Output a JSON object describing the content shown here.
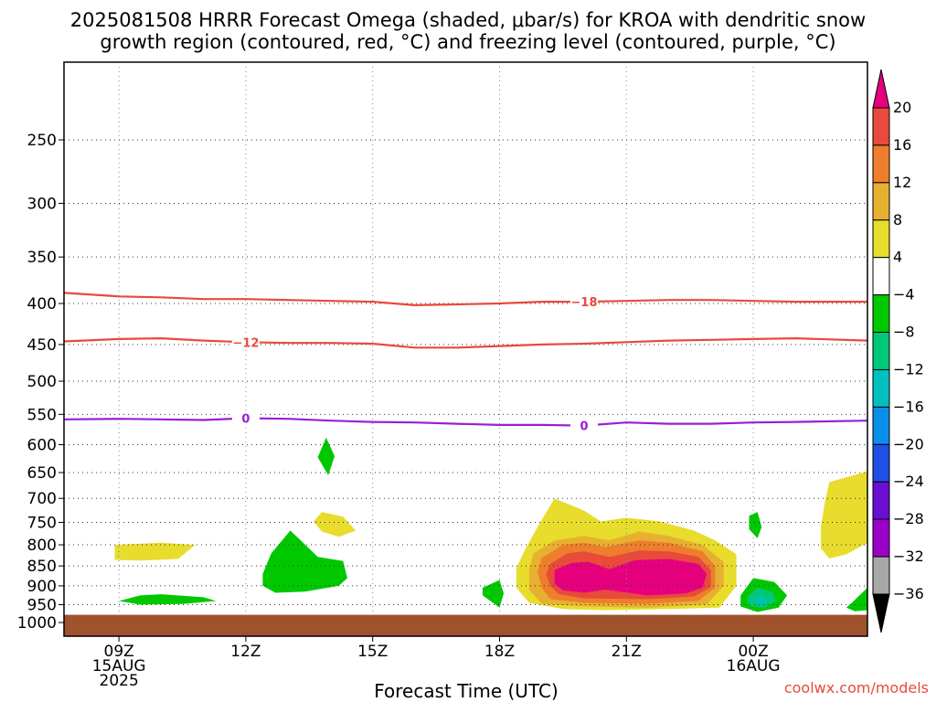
{
  "chart_data": {
    "type": "heatmap",
    "title_lines": [
      "2025081508 HRRR Forecast Omega (shaded, μbar/s) for KROA with dendritic snow",
      "growth region (contoured, red, °C) and freezing level (contoured, purple, °C)"
    ],
    "xlabel": "Forecast Time (UTC)",
    "credit": "coolwx.com/models",
    "x_range_hours": [
      7.7,
      26.7
    ],
    "x_ticks": [
      {
        "hour": 9,
        "lines": [
          "09Z",
          "15AUG",
          "2025"
        ]
      },
      {
        "hour": 12,
        "lines": [
          "12Z"
        ]
      },
      {
        "hour": 15,
        "lines": [
          "15Z"
        ]
      },
      {
        "hour": 18,
        "lines": [
          "18Z"
        ]
      },
      {
        "hour": 21,
        "lines": [
          "21Z"
        ]
      },
      {
        "hour": 24,
        "lines": [
          "00Z",
          "16AUG"
        ]
      }
    ],
    "y_ticks_hpa": [
      250,
      300,
      350,
      400,
      450,
      500,
      550,
      600,
      650,
      700,
      750,
      800,
      850,
      900,
      950,
      1000
    ],
    "y_scale": "log-pressure",
    "y_range_hpa": [
      200,
      1040
    ],
    "ground_level_hpa": 978,
    "grid": true,
    "colorbar": {
      "labels": [
        "20",
        "16",
        "12",
        "8",
        "4",
        "−4",
        "−8",
        "−12",
        "−16",
        "−20",
        "−24",
        "−28",
        "−32",
        "−36"
      ],
      "colors": [
        "#e6007e",
        "#e84a3c",
        "#ed7f2c",
        "#e8b030",
        "#e8dc2c",
        "#ffffff",
        "#00c800",
        "#00c87a",
        "#00c0c0",
        "#0a8fe8",
        "#1f4fe6",
        "#6a0fd2",
        "#9a00c8",
        "#a8a8a8",
        "#000000"
      ],
      "arrow_top_color": "#e6007e",
      "arrow_bottom_color": "#000000"
    },
    "contours": [
      {
        "label": "−18",
        "color": "#e84a3c",
        "points": [
          [
            7.7,
            388
          ],
          [
            9,
            392
          ],
          [
            10,
            393
          ],
          [
            11,
            395
          ],
          [
            12,
            395
          ],
          [
            13,
            396
          ],
          [
            14,
            397
          ],
          [
            15,
            398
          ],
          [
            16,
            402
          ],
          [
            17,
            401
          ],
          [
            18,
            400
          ],
          [
            19,
            398
          ],
          [
            20,
            398
          ],
          [
            21,
            397
          ],
          [
            22,
            396
          ],
          [
            23,
            396
          ],
          [
            24,
            397
          ],
          [
            25,
            398
          ],
          [
            26.7,
            398
          ]
        ]
      },
      {
        "label": "−12",
        "color": "#e84a3c",
        "points": [
          [
            7.7,
            446
          ],
          [
            9,
            443
          ],
          [
            10,
            442
          ],
          [
            11,
            445
          ],
          [
            12,
            447
          ],
          [
            13,
            448
          ],
          [
            14,
            448
          ],
          [
            15,
            449
          ],
          [
            16,
            454
          ],
          [
            17,
            454
          ],
          [
            18,
            452
          ],
          [
            19,
            450
          ],
          [
            20,
            449
          ],
          [
            21,
            447
          ],
          [
            22,
            445
          ],
          [
            23,
            444
          ],
          [
            24,
            443
          ],
          [
            25,
            442
          ],
          [
            26.7,
            445
          ]
        ]
      },
      {
        "label": "0",
        "color": "#9a1fd0",
        "points": [
          [
            7.7,
            558
          ],
          [
            9,
            557
          ],
          [
            10,
            558
          ],
          [
            11,
            559
          ],
          [
            12,
            556
          ],
          [
            13,
            557
          ],
          [
            14,
            560
          ],
          [
            15,
            562
          ],
          [
            16,
            563
          ],
          [
            17,
            565
          ],
          [
            18,
            567
          ],
          [
            19,
            567
          ],
          [
            20,
            568
          ],
          [
            21,
            563
          ],
          [
            22,
            565
          ],
          [
            23,
            565
          ],
          [
            24,
            563
          ],
          [
            25,
            562
          ],
          [
            26.7,
            560
          ]
        ]
      }
    ],
    "omega_regions": [
      {
        "value_range": "4 to 8",
        "color": "#e8dc2c",
        "points": [
          [
            8.9,
            800
          ],
          [
            10,
            795
          ],
          [
            10.8,
            800
          ],
          [
            10.4,
            833
          ],
          [
            9.5,
            837
          ],
          [
            8.9,
            835
          ]
        ]
      },
      {
        "value_range": "4 to 8",
        "color": "#e8dc2c",
        "points": [
          [
            13.8,
            728
          ],
          [
            14.3,
            738
          ],
          [
            14.6,
            768
          ],
          [
            14.2,
            782
          ],
          [
            13.8,
            770
          ],
          [
            13.6,
            748
          ]
        ]
      },
      {
        "value_range": "4 to 8",
        "color": "#e8dc2c",
        "points": [
          [
            18.6,
            812
          ],
          [
            18.9,
            760
          ],
          [
            19.3,
            700
          ],
          [
            20,
            725
          ],
          [
            20.4,
            748
          ],
          [
            21,
            740
          ],
          [
            21.8,
            748
          ],
          [
            22.6,
            768
          ],
          [
            23.1,
            790
          ],
          [
            23.6,
            822
          ],
          [
            23.6,
            900
          ],
          [
            23.2,
            958
          ],
          [
            22,
            962
          ],
          [
            20.5,
            965
          ],
          [
            19.5,
            962
          ],
          [
            18.7,
            945
          ],
          [
            18.4,
            905
          ],
          [
            18.4,
            855
          ]
        ]
      },
      {
        "value_range": "4 to 8",
        "color": "#e8dc2c",
        "points": [
          [
            25.8,
            668
          ],
          [
            26.7,
            648
          ],
          [
            26.7,
            795
          ],
          [
            26.2,
            822
          ],
          [
            25.8,
            832
          ],
          [
            25.6,
            808
          ],
          [
            25.6,
            760
          ],
          [
            25.7,
            705
          ]
        ]
      },
      {
        "value_range": "8 to 12",
        "color": "#e8b030",
        "points": [
          [
            18.8,
            820
          ],
          [
            19.3,
            790
          ],
          [
            20,
            780
          ],
          [
            20.6,
            790
          ],
          [
            21.3,
            770
          ],
          [
            22,
            780
          ],
          [
            22.8,
            800
          ],
          [
            23.3,
            840
          ],
          [
            23.3,
            900
          ],
          [
            22.9,
            950
          ],
          [
            21.5,
            958
          ],
          [
            20,
            955
          ],
          [
            19,
            948
          ],
          [
            18.7,
            910
          ],
          [
            18.7,
            860
          ]
        ]
      },
      {
        "value_range": "12 to 16",
        "color": "#ed7f2c",
        "points": [
          [
            19,
            830
          ],
          [
            19.5,
            800
          ],
          [
            20,
            795
          ],
          [
            20.5,
            805
          ],
          [
            21.3,
            790
          ],
          [
            22,
            795
          ],
          [
            22.8,
            815
          ],
          [
            23.1,
            850
          ],
          [
            23.1,
            905
          ],
          [
            22.7,
            940
          ],
          [
            21.5,
            948
          ],
          [
            20,
            945
          ],
          [
            19.2,
            935
          ],
          [
            19,
            905
          ],
          [
            18.9,
            865
          ]
        ]
      },
      {
        "value_range": "16 to 20",
        "color": "#e84a3c",
        "points": [
          [
            19.2,
            845
          ],
          [
            19.6,
            820
          ],
          [
            20,
            815
          ],
          [
            20.6,
            828
          ],
          [
            21.3,
            813
          ],
          [
            22,
            815
          ],
          [
            22.7,
            828
          ],
          [
            23,
            860
          ],
          [
            23,
            903
          ],
          [
            22.6,
            928
          ],
          [
            21.5,
            935
          ],
          [
            20,
            933
          ],
          [
            19.4,
            922
          ],
          [
            19.2,
            900
          ],
          [
            19.1,
            870
          ]
        ]
      },
      {
        "value_range": "> 20",
        "color": "#e6007e",
        "points": [
          [
            19.3,
            860
          ],
          [
            19.7,
            843
          ],
          [
            20.1,
            840
          ],
          [
            20.6,
            858
          ],
          [
            21.2,
            836
          ],
          [
            22,
            833
          ],
          [
            22.7,
            845
          ],
          [
            22.9,
            870
          ],
          [
            22.8,
            905
          ],
          [
            22.4,
            920
          ],
          [
            21.5,
            925
          ],
          [
            20.5,
            910
          ],
          [
            20,
            918
          ],
          [
            19.5,
            912
          ],
          [
            19.3,
            895
          ]
        ]
      },
      {
        "value_range": "-4 to -8",
        "color": "#00c800",
        "points": [
          [
            13.9,
            588
          ],
          [
            14.1,
            620
          ],
          [
            13.95,
            655
          ],
          [
            13.7,
            622
          ]
        ]
      },
      {
        "value_range": "-4 to -8",
        "color": "#00c800",
        "points": [
          [
            13.05,
            768
          ],
          [
            13.3,
            790
          ],
          [
            13.7,
            828
          ],
          [
            14.3,
            838
          ],
          [
            14.4,
            880
          ],
          [
            14.2,
            900
          ],
          [
            13.4,
            915
          ],
          [
            12.7,
            918
          ],
          [
            12.4,
            900
          ],
          [
            12.4,
            870
          ],
          [
            12.6,
            820
          ]
        ]
      },
      {
        "value_range": "-4 to -8",
        "color": "#00c800",
        "points": [
          [
            9,
            940
          ],
          [
            9.5,
            925
          ],
          [
            10,
            922
          ],
          [
            11,
            930
          ],
          [
            11.3,
            940
          ],
          [
            10.5,
            948
          ],
          [
            9.5,
            950
          ]
        ]
      },
      {
        "value_range": "-4 to -8",
        "color": "#00c800",
        "points": [
          [
            17.6,
            905
          ],
          [
            18,
            885
          ],
          [
            18.1,
            920
          ],
          [
            18,
            958
          ],
          [
            17.6,
            925
          ]
        ]
      },
      {
        "value_range": "-4 to -8",
        "color": "#00c800",
        "points": [
          [
            23.9,
            736
          ],
          [
            24.1,
            728
          ],
          [
            24.2,
            760
          ],
          [
            24.1,
            785
          ],
          [
            23.9,
            765
          ]
        ]
      },
      {
        "value_range": "-4 to -8",
        "color": "#00c800",
        "points": [
          [
            23.7,
            925
          ],
          [
            24,
            880
          ],
          [
            24.5,
            890
          ],
          [
            24.8,
            925
          ],
          [
            24.6,
            958
          ],
          [
            24.1,
            970
          ],
          [
            23.7,
            955
          ]
        ]
      },
      {
        "value_range": "-8 to -12",
        "color": "#00c87a",
        "points": [
          [
            23.85,
            930
          ],
          [
            24.1,
            905
          ],
          [
            24.45,
            915
          ],
          [
            24.55,
            940
          ],
          [
            24.25,
            960
          ],
          [
            23.9,
            952
          ]
        ]
      },
      {
        "value_range": "-12 to -16",
        "color": "#00c0c0",
        "points": [
          [
            24,
            935
          ],
          [
            24.2,
            928
          ],
          [
            24.35,
            940
          ],
          [
            24.15,
            950
          ]
        ]
      },
      {
        "value_range": "-4 to -8",
        "color": "#00c800",
        "points": [
          [
            26.3,
            948
          ],
          [
            26.7,
            905
          ],
          [
            26.7,
            965
          ],
          [
            26.4,
            968
          ],
          [
            26.2,
            958
          ]
        ]
      }
    ]
  }
}
